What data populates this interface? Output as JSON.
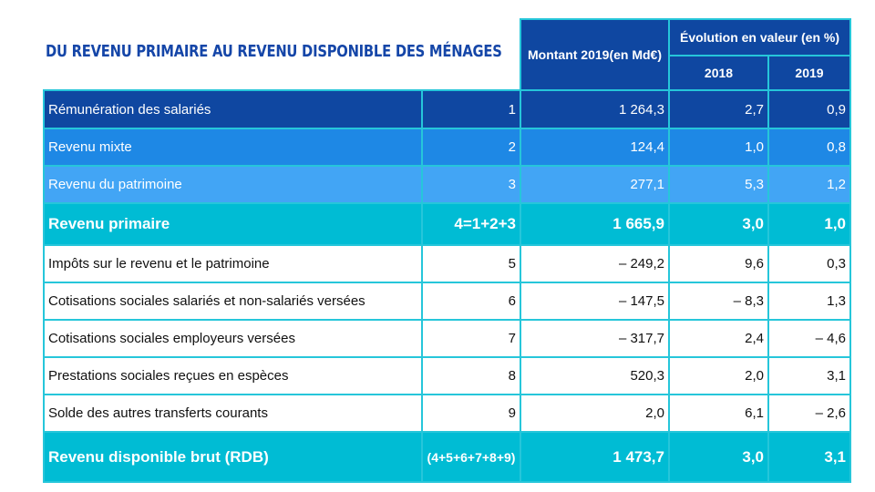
{
  "title": "DU REVENU PRIMAIRE AU REVENU DISPONIBLE DES MÉNAGES",
  "header": {
    "amount": "Montant 2019(en Md€)",
    "evolution": "Évolution en valeur (en %)",
    "y2018": "2018",
    "y2019": "2019"
  },
  "rows": [
    {
      "label": "Rémunération des salariés",
      "code": "1",
      "amount": "1 264,3",
      "e2018": "2,7",
      "e2019": "0,9"
    },
    {
      "label": "Revenu mixte",
      "code": "2",
      "amount": "124,4",
      "e2018": "1,0",
      "e2019": "0,8"
    },
    {
      "label": "Revenu du patrimoine",
      "code": "3",
      "amount": "277,1",
      "e2018": "5,3",
      "e2019": "1,2"
    },
    {
      "label": "Revenu primaire",
      "code": "4=1+2+3",
      "amount": "1 665,9",
      "e2018": "3,0",
      "e2019": "1,0"
    },
    {
      "label": "Impôts sur le revenu et le patrimoine",
      "code": "5",
      "amount": "– 249,2",
      "e2018": "9,6",
      "e2019": "0,3"
    },
    {
      "label": "Cotisations sociales salariés et non-salariés versées",
      "code": "6",
      "amount": "– 147,5",
      "e2018": "– 8,3",
      "e2019": "1,3"
    },
    {
      "label": "Cotisations sociales employeurs versées",
      "code": "7",
      "amount": "– 317,7",
      "e2018": "2,4",
      "e2019": "– 4,6"
    },
    {
      "label": "Prestations sociales reçues en espèces",
      "code": "8",
      "amount": "520,3",
      "e2018": "2,0",
      "e2019": "3,1"
    },
    {
      "label": "Solde des autres transferts courants",
      "code": "9",
      "amount": "2,0",
      "e2018": "6,1",
      "e2019": "– 2,6"
    },
    {
      "label": "Revenu disponible brut (RDB)",
      "code": "(4+5+6+7+8+9)",
      "amount": "1 473,7",
      "e2018": "3,0",
      "e2019": "3,1"
    }
  ]
}
